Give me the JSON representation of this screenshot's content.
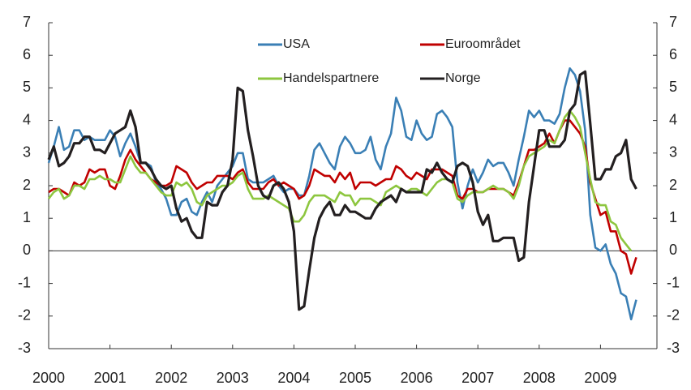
{
  "chart_data": {
    "type": "line",
    "categories": [
      "2000",
      null,
      null,
      null,
      null,
      null,
      null,
      null,
      null,
      null,
      null,
      null,
      "2001",
      null,
      null,
      null,
      null,
      null,
      null,
      null,
      null,
      null,
      null,
      null,
      "2002",
      null,
      null,
      null,
      null,
      null,
      null,
      null,
      null,
      null,
      null,
      null,
      "2003",
      null,
      null,
      null,
      null,
      null,
      null,
      null,
      null,
      null,
      null,
      null,
      "2004",
      null,
      null,
      null,
      null,
      null,
      null,
      null,
      null,
      null,
      null,
      null,
      "2005",
      null,
      null,
      null,
      null,
      null,
      null,
      null,
      null,
      null,
      null,
      null,
      "2006",
      null,
      null,
      null,
      null,
      null,
      null,
      null,
      null,
      null,
      null,
      null,
      "2007",
      null,
      null,
      null,
      null,
      null,
      null,
      null,
      null,
      null,
      null,
      null,
      "2008",
      null,
      null,
      null,
      null,
      null,
      null,
      null,
      null,
      null,
      null,
      null,
      "2009",
      null,
      null,
      null,
      null,
      null,
      null,
      null
    ],
    "series": [
      {
        "name": "USA",
        "color": "#3a7fb5",
        "values": [
          2.7,
          3.2,
          3.8,
          3.1,
          3.2,
          3.7,
          3.7,
          3.4,
          3.5,
          3.4,
          3.4,
          3.4,
          3.7,
          3.5,
          2.9,
          3.3,
          3.6,
          3.2,
          2.7,
          2.7,
          2.6,
          2.1,
          1.9,
          1.6,
          1.1,
          1.1,
          1.5,
          1.6,
          1.2,
          1.1,
          1.5,
          1.8,
          1.5,
          2.0,
          2.2,
          2.4,
          2.6,
          3.0,
          3.0,
          2.2,
          2.1,
          2.1,
          2.1,
          2.2,
          2.3,
          2.0,
          1.8,
          1.9,
          1.9,
          1.7,
          1.7,
          2.3,
          3.1,
          3.3,
          3.0,
          2.7,
          2.5,
          3.2,
          3.5,
          3.3,
          3.0,
          3.0,
          3.1,
          3.5,
          2.8,
          2.5,
          3.2,
          3.6,
          4.7,
          4.3,
          3.5,
          3.4,
          4.0,
          3.6,
          3.4,
          3.5,
          4.2,
          4.3,
          4.1,
          3.8,
          2.1,
          1.3,
          2.0,
          2.5,
          2.1,
          2.4,
          2.8,
          2.6,
          2.7,
          2.7,
          2.4,
          2.0,
          2.8,
          3.5,
          4.3,
          4.1,
          4.3,
          4.0,
          4.0,
          3.9,
          4.2,
          5.0,
          5.6,
          5.4,
          4.9,
          3.7,
          1.1,
          0.1,
          0.0,
          0.2,
          -0.4,
          -0.7,
          -1.3,
          -1.4,
          -2.1,
          -1.5
        ]
      },
      {
        "name": "Euroområdet",
        "color": "#c00000",
        "values": [
          1.8,
          1.9,
          1.9,
          1.8,
          1.7,
          2.1,
          2.0,
          2.1,
          2.5,
          2.4,
          2.5,
          2.5,
          2.0,
          1.9,
          2.3,
          2.8,
          3.1,
          2.8,
          2.6,
          2.4,
          2.2,
          2.1,
          2.0,
          2.0,
          2.1,
          2.6,
          2.5,
          2.4,
          2.1,
          1.9,
          2.0,
          2.1,
          2.1,
          2.3,
          2.3,
          2.3,
          2.2,
          2.4,
          2.5,
          2.1,
          1.9,
          1.9,
          1.9,
          2.1,
          2.2,
          2.0,
          2.1,
          2.0,
          1.9,
          1.6,
          1.7,
          2.0,
          2.5,
          2.4,
          2.3,
          2.3,
          2.1,
          2.4,
          2.2,
          2.4,
          1.9,
          2.1,
          2.1,
          2.1,
          2.0,
          2.1,
          2.2,
          2.2,
          2.6,
          2.5,
          2.3,
          2.2,
          2.4,
          2.3,
          2.2,
          2.5,
          2.5,
          2.5,
          2.4,
          2.3,
          1.7,
          1.6,
          1.9,
          1.9,
          1.8,
          1.8,
          1.9,
          1.9,
          1.9,
          1.9,
          1.8,
          1.7,
          2.1,
          2.6,
          3.1,
          3.1,
          3.2,
          3.3,
          3.6,
          3.3,
          3.7,
          4.0,
          4.0,
          3.8,
          3.6,
          3.2,
          2.1,
          1.6,
          1.1,
          1.2,
          0.6,
          0.6,
          0.0,
          -0.1,
          -0.7,
          -0.2
        ]
      },
      {
        "name": "Handelspartnere",
        "color": "#8dc63f",
        "values": [
          1.6,
          1.8,
          1.9,
          1.6,
          1.7,
          2.0,
          2.0,
          1.9,
          2.2,
          2.2,
          2.3,
          2.2,
          2.2,
          2.1,
          2.1,
          2.5,
          2.9,
          2.6,
          2.4,
          2.4,
          2.2,
          2.0,
          1.8,
          1.7,
          1.7,
          2.1,
          2.0,
          2.1,
          1.9,
          1.5,
          1.4,
          1.7,
          1.8,
          1.9,
          2.0,
          2.0,
          2.1,
          2.3,
          2.4,
          1.9,
          1.6,
          1.6,
          1.6,
          1.7,
          1.6,
          1.5,
          1.4,
          1.3,
          0.9,
          0.9,
          1.1,
          1.5,
          1.7,
          1.7,
          1.7,
          1.6,
          1.5,
          1.8,
          1.7,
          1.7,
          1.4,
          1.6,
          1.6,
          1.6,
          1.5,
          1.4,
          1.8,
          1.9,
          2.0,
          1.9,
          1.8,
          1.9,
          1.9,
          1.8,
          1.7,
          1.9,
          2.1,
          2.2,
          2.2,
          2.1,
          1.6,
          1.5,
          1.7,
          1.8,
          1.8,
          1.8,
          1.9,
          2.0,
          1.9,
          1.9,
          1.8,
          1.6,
          2.0,
          2.6,
          2.9,
          3.0,
          3.1,
          3.2,
          3.4,
          3.3,
          3.7,
          4.1,
          4.3,
          4.1,
          3.8,
          3.0,
          2.2,
          1.5,
          1.4,
          1.4,
          0.9,
          0.8,
          0.4,
          0.2,
          0.0,
          null
        ]
      },
      {
        "name": "Norge",
        "color": "#231f20",
        "values": [
          2.8,
          3.2,
          2.6,
          2.7,
          2.9,
          3.3,
          3.3,
          3.5,
          3.5,
          3.1,
          3.1,
          3.0,
          3.3,
          3.6,
          3.7,
          3.8,
          4.3,
          3.8,
          2.7,
          2.7,
          2.5,
          2.2,
          2.0,
          1.9,
          2.0,
          1.3,
          0.9,
          1.0,
          0.6,
          0.4,
          0.4,
          1.5,
          1.4,
          1.4,
          1.8,
          2.0,
          2.8,
          5.0,
          4.9,
          3.7,
          2.9,
          2.0,
          1.7,
          1.6,
          2.0,
          2.1,
          1.9,
          1.5,
          0.6,
          -1.8,
          -1.7,
          -0.6,
          0.4,
          1.0,
          1.3,
          1.5,
          1.1,
          1.1,
          1.4,
          1.2,
          1.2,
          1.1,
          1.0,
          1.0,
          1.3,
          1.5,
          1.6,
          1.7,
          1.5,
          1.9,
          1.8,
          1.8,
          1.8,
          1.8,
          2.5,
          2.4,
          2.7,
          2.4,
          2.2,
          2.1,
          2.6,
          2.7,
          2.6,
          2.1,
          1.2,
          0.8,
          1.1,
          0.3,
          0.3,
          0.4,
          0.4,
          0.4,
          -0.3,
          -0.2,
          1.5,
          2.6,
          3.7,
          3.7,
          3.2,
          3.2,
          3.2,
          3.4,
          4.3,
          4.5,
          5.4,
          5.5,
          3.9,
          2.2,
          2.2,
          2.5,
          2.5,
          2.9,
          3.0,
          3.4,
          2.2,
          1.9
        ]
      }
    ],
    "ylim": [
      -3,
      7
    ],
    "yticks": [
      -3,
      -2,
      -1,
      0,
      1,
      2,
      3,
      4,
      5,
      6,
      7
    ],
    "y2lim": [
      -3,
      7
    ],
    "y2ticks": [
      -3,
      -2,
      -1,
      0,
      1,
      2,
      3,
      4,
      5,
      6,
      7
    ]
  }
}
